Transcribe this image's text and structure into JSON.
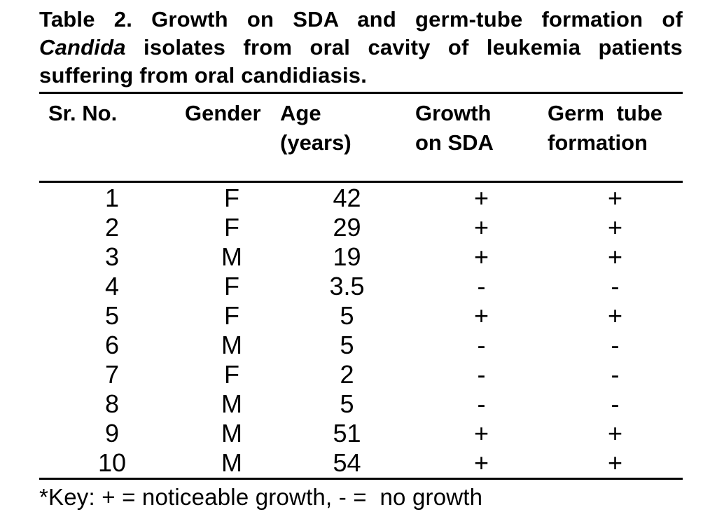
{
  "title": {
    "line1": "Table 2. Growth on SDA and germ-tube formation of",
    "line2_italic": "Candida",
    "line2_rest": "isolates from oral cavity of leukemia patients",
    "line3": "suffering from oral candidiasis."
  },
  "table": {
    "headers": [
      {
        "line1": "Sr. No.",
        "line2": ""
      },
      {
        "line1": "Gender",
        "line2": ""
      },
      {
        "line1": "Age",
        "line2": "(years)"
      },
      {
        "line1": "Growth",
        "line2": "on SDA"
      },
      {
        "line1": "Germ tube",
        "line2": "formation"
      }
    ],
    "rows": [
      {
        "sr": "1",
        "gender": "F",
        "age": "42",
        "sda": "+",
        "germ": "+"
      },
      {
        "sr": "2",
        "gender": "F",
        "age": "29",
        "sda": "+",
        "germ": "+"
      },
      {
        "sr": "3",
        "gender": "M",
        "age": "19",
        "sda": "+",
        "germ": "+"
      },
      {
        "sr": "4",
        "gender": "F",
        "age": "3.5",
        "sda": "-",
        "germ": "-"
      },
      {
        "sr": "5",
        "gender": "F",
        "age": "5",
        "sda": "+",
        "germ": "+"
      },
      {
        "sr": "6",
        "gender": "M",
        "age": "5",
        "sda": "-",
        "germ": "-"
      },
      {
        "sr": "7",
        "gender": "F",
        "age": "2",
        "sda": "-",
        "germ": "-"
      },
      {
        "sr": "8",
        "gender": "M",
        "age": "5",
        "sda": "-",
        "germ": "-"
      },
      {
        "sr": "9",
        "gender": "M",
        "age": "51",
        "sda": "+",
        "germ": "+"
      },
      {
        "sr": "10",
        "gender": "M",
        "age": "54",
        "sda": "+",
        "germ": "+"
      }
    ]
  },
  "footnote": "*Key: + = noticeable growth, - =  no growth",
  "colors": {
    "text": "#000000",
    "background": "#ffffff",
    "rule": "#000000"
  }
}
